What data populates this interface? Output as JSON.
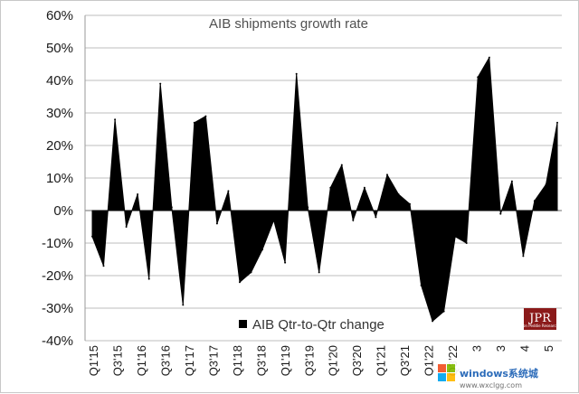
{
  "chart_data": {
    "type": "area",
    "title": "AIB shipments growth rate",
    "ylim": [
      -0.4,
      0.6
    ],
    "yticks": [
      -0.4,
      -0.3,
      -0.2,
      -0.1,
      0,
      0.1,
      0.2,
      0.3,
      0.4,
      0.5,
      0.6
    ],
    "ytick_labels": [
      "-40%",
      "-30%",
      "-20%",
      "-10%",
      "0%",
      "10%",
      "20%",
      "30%",
      "40%",
      "50%",
      "60%"
    ],
    "xtick_labels": [
      "Q1'15",
      "Q3'15",
      "Q1'16",
      "Q3'16",
      "Q1'17",
      "Q3'17",
      "Q1'18",
      "Q3'18",
      "Q1'19",
      "Q3'19",
      "Q1'20",
      "Q3'20",
      "Q1'21",
      "Q3'21",
      "Q1'22",
      "Q3'22",
      "3",
      "3",
      "4",
      "5"
    ],
    "grid": true,
    "legend_placement": "bottom-center",
    "series": [
      {
        "name": "AIB Qtr-to-Qtr change",
        "color": "#000000",
        "values": [
          -0.08,
          -0.17,
          0.28,
          -0.05,
          0.05,
          -0.21,
          0.39,
          0.01,
          -0.29,
          0.27,
          0.29,
          -0.04,
          0.06,
          -0.22,
          -0.19,
          -0.12,
          -0.03,
          -0.16,
          0.42,
          0.01,
          -0.19,
          0.07,
          0.14,
          -0.03,
          0.07,
          -0.02,
          0.11,
          0.05,
          0.02,
          -0.23,
          -0.34,
          -0.31,
          -0.08,
          -0.1,
          0.41,
          0.47,
          -0.01,
          0.09,
          -0.14,
          0.03,
          0.08,
          0.27
        ]
      }
    ]
  },
  "legend": {
    "label": "AIB Qtr-to-Qtr change"
  },
  "badge": {
    "text": "JPR",
    "subtitle": "Jon Peddie Research"
  },
  "watermark": {
    "text": "windows系统城",
    "url_text": "www.wxclgg.com"
  }
}
